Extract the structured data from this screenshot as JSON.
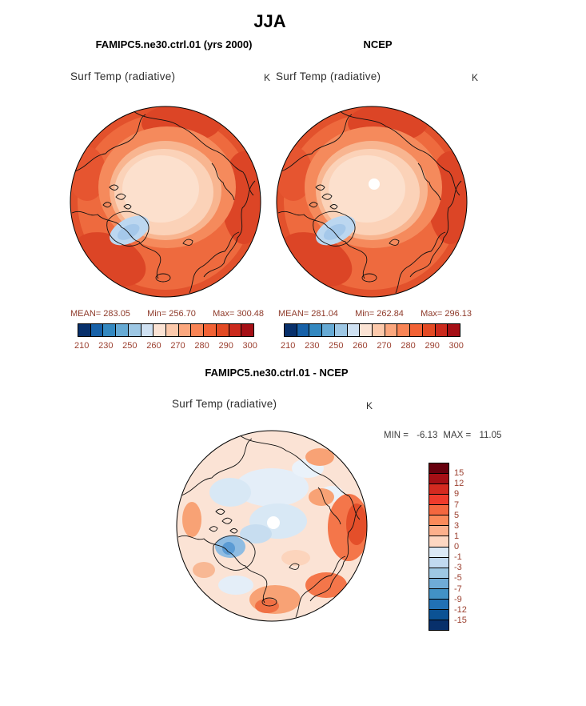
{
  "title": "JJA",
  "panels": {
    "model": {
      "header": "FAMIPC5.ne30.ctrl.01 (yrs 2000)",
      "subtitle": "Surf Temp (radiative)",
      "units": "K",
      "stats": {
        "mean_label": "MEAN=",
        "mean": "283.05",
        "min_label": "Min=",
        "min": "256.70",
        "max_label": "Max=",
        "max": "300.48"
      }
    },
    "obs": {
      "header": "NCEP",
      "subtitle": "Surf Temp (radiative)",
      "units": "K",
      "stats": {
        "mean_label": "MEAN=",
        "mean": "281.04",
        "min_label": "Min=",
        "min": "262.84",
        "max_label": "Max=",
        "max": "296.13"
      }
    },
    "diff": {
      "header": "FAMIPC5.ne30.ctrl.01 - NCEP",
      "subtitle": "Surf Temp (radiative)",
      "units": "K",
      "stats": {
        "min_label": "MIN = ",
        "min": "-6.13",
        "max_label": "MAX = ",
        "max": "11.05"
      }
    }
  },
  "colorbars": {
    "absolute": {
      "orientation": "horizontal",
      "ticks": [
        "210",
        "230",
        "250",
        "260",
        "270",
        "280",
        "290",
        "300"
      ],
      "colors": [
        "#08306b",
        "#1761a8",
        "#3388c0",
        "#66aad4",
        "#9dc7e4",
        "#cfe1f2",
        "#fbe3d4",
        "#fcc9ab",
        "#fba77e",
        "#f98455",
        "#f26235",
        "#e34a24",
        "#cb2a1d",
        "#a50f15"
      ]
    },
    "difference": {
      "orientation": "vertical",
      "ticks": [
        "15",
        "12",
        "9",
        "7",
        "5",
        "3",
        "1",
        "0",
        "-1",
        "-3",
        "-5",
        "-7",
        "-9",
        "-12",
        "-15"
      ],
      "colors": [
        "#67000d",
        "#a50f15",
        "#d42a20",
        "#ef3b2c",
        "#f4673f",
        "#fb8a5a",
        "#fcb08c",
        "#fdd7c2",
        "#dbe9f6",
        "#c1d9ef",
        "#9ec8e4",
        "#6fabd6",
        "#4292c6",
        "#2171b5",
        "#0b5294",
        "#08306b"
      ]
    }
  },
  "chart_data": [
    {
      "type": "heatmap",
      "title": "FAMIPC5.ne30.ctrl.01 (yrs 2000)",
      "subtitle": "Surf Temp (radiative)",
      "season": "JJA",
      "units": "K",
      "projection": "north polar stereographic map, filled contours",
      "stats": {
        "mean": 283.05,
        "min": 256.7,
        "max": 300.48
      },
      "colorbar_ticks": [
        210,
        230,
        250,
        260,
        270,
        280,
        290,
        300
      ],
      "value_range": [
        210,
        300
      ],
      "legend_position": "bottom"
    },
    {
      "type": "heatmap",
      "title": "NCEP",
      "subtitle": "Surf Temp (radiative)",
      "season": "JJA",
      "units": "K",
      "projection": "north polar stereographic map, filled contours",
      "stats": {
        "mean": 281.04,
        "min": 262.84,
        "max": 296.13
      },
      "colorbar_ticks": [
        210,
        230,
        250,
        260,
        270,
        280,
        290,
        300
      ],
      "value_range": [
        210,
        300
      ],
      "legend_position": "bottom"
    },
    {
      "type": "heatmap",
      "title": "FAMIPC5.ne30.ctrl.01 - NCEP",
      "subtitle": "Surf Temp (radiative)",
      "season": "JJA",
      "units": "K",
      "projection": "north polar stereographic map, filled contour difference",
      "stats": {
        "min": -6.13,
        "max": 11.05
      },
      "colorbar_ticks": [
        15,
        12,
        9,
        7,
        5,
        3,
        1,
        0,
        -1,
        -3,
        -5,
        -7,
        -9,
        -12,
        -15
      ],
      "value_range": [
        -15,
        15
      ],
      "legend_position": "right"
    }
  ]
}
